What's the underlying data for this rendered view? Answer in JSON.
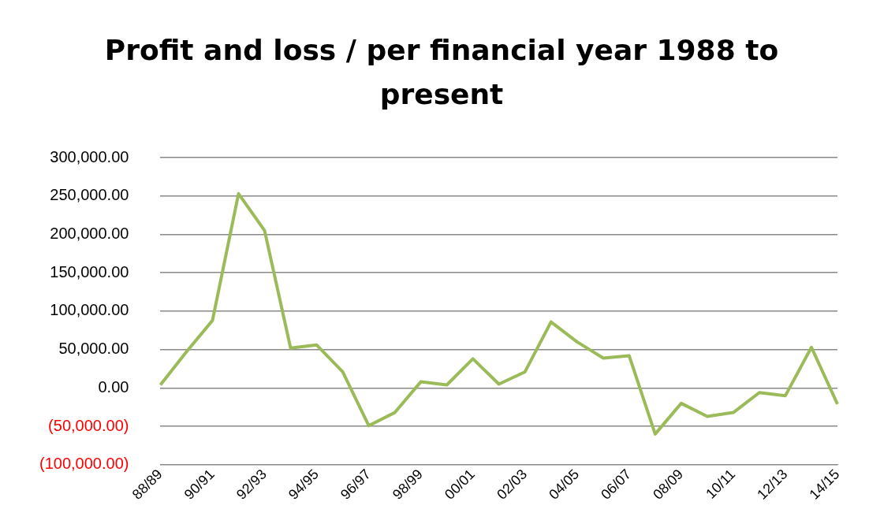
{
  "chart_data": {
    "type": "line",
    "title": "Profit and loss / per financial year 1988 to present",
    "categories": [
      "88/89",
      null,
      "90/91",
      null,
      "92/93",
      null,
      "94/95",
      null,
      "96/97",
      null,
      "98/99",
      null,
      "00/01",
      null,
      "02/03",
      null,
      "04/05",
      null,
      "06/07",
      null,
      "08/09",
      null,
      "10/11",
      null,
      "12/13",
      null,
      "14/15"
    ],
    "series": [
      {
        "color": "#9bbb59",
        "values": [
          4000,
          47000,
          88000,
          253000,
          205000,
          52000,
          56000,
          21000,
          -49000,
          -32000,
          8000,
          4000,
          38000,
          5000,
          21000,
          86000,
          60000,
          39000,
          42000,
          -60000,
          -20000,
          -37000,
          -32000,
          -6000,
          -10000,
          53000,
          -21000
        ]
      }
    ],
    "ylim": [
      -100000,
      300000
    ],
    "yticks": [
      {
        "value": -100000,
        "label": "(100,000.00)"
      },
      {
        "value": -50000,
        "label": "(50,000.00)"
      },
      {
        "value": 0,
        "label": "0.00"
      },
      {
        "value": 50000,
        "label": "50,000.00"
      },
      {
        "value": 100000,
        "label": "100,000.00"
      },
      {
        "value": 150000,
        "label": "150,000.00"
      },
      {
        "value": 200000,
        "label": "200,000.00"
      },
      {
        "value": 250000,
        "label": "250,000.00"
      },
      {
        "value": 300000,
        "label": "300,000.00"
      }
    ],
    "grid": "y",
    "legend": false,
    "marker": "none",
    "line_style": "solid"
  }
}
